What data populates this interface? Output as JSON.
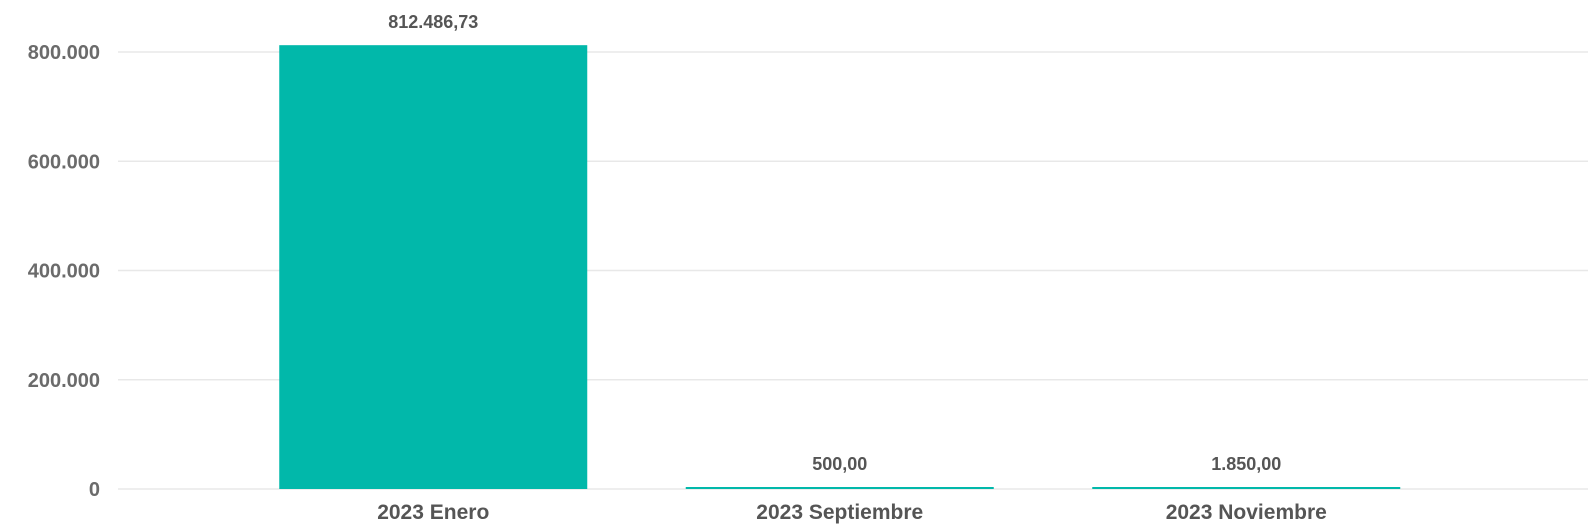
{
  "chart_data": {
    "type": "bar",
    "categories": [
      "2023 Enero",
      "2023 Septiembre",
      "2023 Noviembre"
    ],
    "values": [
      812486.73,
      500.0,
      1850.0
    ],
    "data_labels": [
      "812.486,73",
      "500,00",
      "1.850,00"
    ],
    "yticks": [
      0,
      200000,
      400000,
      600000,
      800000
    ],
    "ytick_labels": [
      "0",
      "200.000",
      "400.000",
      "600.000",
      "800.000"
    ],
    "ylim": [
      0,
      813000
    ],
    "grid": true,
    "legend": "none",
    "title": "",
    "xlabel": "",
    "ylabel": "",
    "colors": {
      "bar": "#01b8aa",
      "grid": "#e8e8e8",
      "axis_text": "#6b6b6b",
      "label_text": "#555555"
    }
  }
}
